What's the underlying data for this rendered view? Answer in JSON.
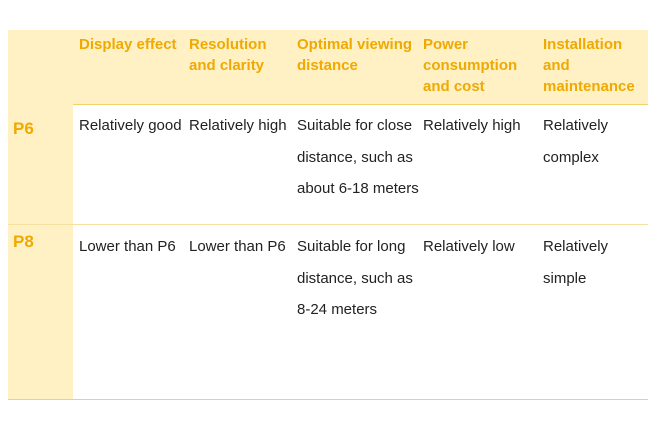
{
  "columns": [
    "Display effect",
    "Resolution and clarity",
    "Optimal viewing distance",
    "Power consumption and cost",
    "Installation and maintenance"
  ],
  "rows": [
    {
      "label": "P6",
      "cells": [
        "Relatively good",
        "Relatively high",
        "Suitable for close distance, such as about 6-18 meters",
        "Relatively high",
        "Relatively complex"
      ]
    },
    {
      "label": "P8",
      "cells": [
        "Lower than P6",
        "Lower than P6",
        "Suitable for long distance, such as 8-24 meters",
        "Relatively low",
        "Relatively simple"
      ]
    }
  ],
  "colors": {
    "accent": "#f0a900",
    "header_bg": "#fff1c4",
    "text": "#222222"
  }
}
